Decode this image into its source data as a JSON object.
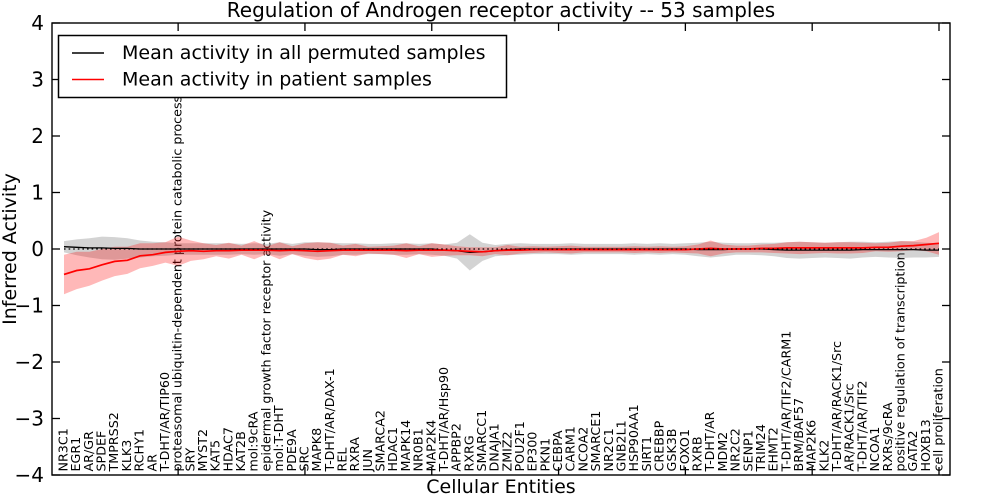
{
  "chart_data": {
    "type": "line",
    "title": "Regulation of Androgen receptor activity -- 53 samples",
    "xlabel": "Cellular Entities",
    "ylabel": "Inferred Activity",
    "ylim": [
      -4,
      4
    ],
    "yticks": [
      4,
      3,
      2,
      1,
      0,
      -1,
      -2,
      -3,
      -4
    ],
    "grid": false,
    "legend_position": "upper left",
    "zero_reference_line": {
      "style": "dotted",
      "color": "#000000",
      "y": 0
    },
    "categories": [
      "NR3C1",
      "EGR1",
      "AR/GR",
      "SPDEF",
      "TMPRSS2",
      "KLK3",
      "RCHY1",
      "AR",
      "T-DHT/AR/TIP60",
      "proteasomal ubiquitin-dependent protein catabolic process",
      "SRY",
      "MYST2",
      "KAT5",
      "HDAC7",
      "KAT2B",
      "mol:9cRA",
      "epidermal growth factor receptor activity",
      "mol:T-DHT",
      "PDE9A",
      "SRC",
      "MAPK8",
      "T-DHT/AR/DAX-1",
      "REL",
      "RXRA",
      "JUN",
      "SMARCA2",
      "HDAC1",
      "MAPK14",
      "NR0B1",
      "MAP2K4",
      "T-DHT/AR/Hsp90",
      "APPBP2",
      "RXRG",
      "SMARCC1",
      "DNAJA1",
      "ZMIZ2",
      "POU2F1",
      "EP300",
      "PKN1",
      "CEBPA",
      "CARM1",
      "NCOA2",
      "SMARCE1",
      "NR2C1",
      "GNB2L1",
      "HSP90AA1",
      "SIRT1",
      "CREBBP",
      "GSK3B",
      "FOXO1",
      "RXRB",
      "T-DHT/AR",
      "MDM2",
      "NR2C2",
      "SENP1",
      "TRIM24",
      "EHMT2",
      "T-DHT/AR/TIF2/CARM1",
      "BRM/BAF57",
      "MAP2K6",
      "KLK2",
      "T-DHT/AR/RACK1/Src",
      "AR/RACK1/Src",
      "T-DHT/AR/TIF2",
      "NCOA1",
      "RXRs/9cRA",
      "positive regulation of transcription",
      "GATA2",
      "HOXB13",
      "cell proliferation"
    ],
    "series": [
      {
        "name": "Mean activity in all permuted samples",
        "color": "#000000",
        "line_style": "solid",
        "band_color": "#808080",
        "band_opacity": 0.35,
        "mean": [
          0.04,
          0.03,
          0.02,
          0.02,
          0.01,
          0.01,
          0,
          0,
          0,
          0,
          0,
          0,
          0,
          0,
          0,
          0,
          0,
          0,
          0,
          0,
          -0.01,
          -0.01,
          0,
          0,
          0,
          0,
          0,
          0,
          0,
          0,
          -0.02,
          -0.03,
          -0.06,
          -0.05,
          -0.03,
          -0.01,
          0,
          0,
          0,
          0,
          0,
          0,
          0,
          0,
          0,
          0,
          0,
          0,
          0,
          0,
          -0.01,
          -0.01,
          -0.01,
          0,
          0,
          0,
          -0.01,
          -0.02,
          -0.02,
          -0.02,
          -0.02,
          -0.02,
          -0.02,
          -0.01,
          -0.01,
          -0.01,
          -0.01,
          -0.01,
          -0.02,
          -0.02
        ],
        "std": [
          0.1,
          0.14,
          0.17,
          0.2,
          0.2,
          0.18,
          0.15,
          0.13,
          0.12,
          0.1,
          0.1,
          0.1,
          0.1,
          0.1,
          0.09,
          0.1,
          0.09,
          0.12,
          0.09,
          0.12,
          0.13,
          0.12,
          0.1,
          0.1,
          0.09,
          0.09,
          0.1,
          0.1,
          0.09,
          0.1,
          0.1,
          0.14,
          0.32,
          0.16,
          0.1,
          0.1,
          0.1,
          0.09,
          0.09,
          0.09,
          0.1,
          0.09,
          0.09,
          0.09,
          0.09,
          0.1,
          0.09,
          0.1,
          0.09,
          0.1,
          0.12,
          0.14,
          0.12,
          0.1,
          0.1,
          0.11,
          0.12,
          0.14,
          0.15,
          0.14,
          0.13,
          0.14,
          0.15,
          0.14,
          0.13,
          0.14,
          0.15,
          0.14,
          0.13,
          0.12
        ]
      },
      {
        "name": "Mean activity in patient samples",
        "color": "#ff0000",
        "line_style": "solid",
        "band_color": "#ff0000",
        "band_opacity": 0.28,
        "mean": [
          -0.45,
          -0.38,
          -0.35,
          -0.28,
          -0.22,
          -0.2,
          -0.12,
          -0.1,
          -0.06,
          -0.04,
          -0.03,
          -0.04,
          -0.03,
          -0.03,
          -0.02,
          -0.02,
          -0.02,
          -0.03,
          -0.02,
          -0.03,
          -0.04,
          -0.03,
          -0.02,
          -0.02,
          -0.02,
          -0.02,
          -0.02,
          -0.03,
          -0.02,
          -0.02,
          -0.02,
          -0.03,
          -0.04,
          -0.05,
          -0.03,
          -0.02,
          -0.02,
          -0.01,
          -0.01,
          -0.01,
          -0.01,
          -0.01,
          -0.01,
          -0.01,
          -0.01,
          -0.01,
          -0.01,
          -0.01,
          -0.01,
          -0.01,
          0,
          0.01,
          0,
          0,
          0,
          0.01,
          0.01,
          0.02,
          0.02,
          0.02,
          0.02,
          0.02,
          0.02,
          0.02,
          0.03,
          0.03,
          0.05,
          0.06,
          0.08,
          0.1
        ],
        "std": [
          0.35,
          0.33,
          0.3,
          0.28,
          0.26,
          0.24,
          0.22,
          0.2,
          0.18,
          0.26,
          0.18,
          0.14,
          0.1,
          0.14,
          0.08,
          0.16,
          0.07,
          0.15,
          0.07,
          0.13,
          0.16,
          0.14,
          0.08,
          0.11,
          0.06,
          0.07,
          0.08,
          0.13,
          0.07,
          0.12,
          0.1,
          0.08,
          0.07,
          0.08,
          0.06,
          0.09,
          0.06,
          0.06,
          0.05,
          0.06,
          0.07,
          0.05,
          0.05,
          0.05,
          0.05,
          0.06,
          0.05,
          0.06,
          0.05,
          0.06,
          0.08,
          0.14,
          0.08,
          0.06,
          0.06,
          0.07,
          0.08,
          0.1,
          0.11,
          0.1,
          0.09,
          0.1,
          0.1,
          0.09,
          0.07,
          0.08,
          0.09,
          0.08,
          0.12,
          0.2
        ]
      }
    ]
  }
}
